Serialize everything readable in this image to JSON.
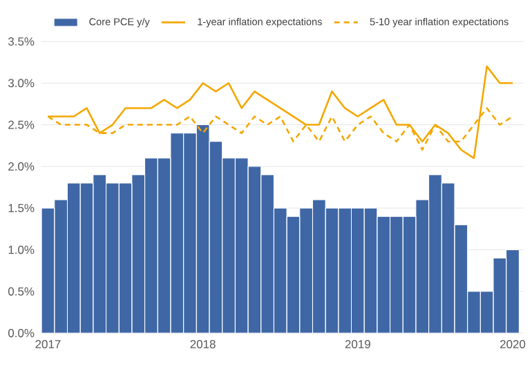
{
  "chart_data": {
    "type": "bar",
    "x": [
      "2017-01",
      "2017-02",
      "2017-03",
      "2017-04",
      "2017-05",
      "2017-06",
      "2017-07",
      "2017-08",
      "2017-09",
      "2017-10",
      "2017-11",
      "2017-12",
      "2018-01",
      "2018-02",
      "2018-03",
      "2018-04",
      "2018-05",
      "2018-06",
      "2018-07",
      "2018-08",
      "2018-09",
      "2018-10",
      "2018-11",
      "2018-12",
      "2019-01",
      "2019-02",
      "2019-03",
      "2019-04",
      "2019-05",
      "2019-06",
      "2019-07",
      "2019-08",
      "2019-09",
      "2019-10",
      "2019-11",
      "2019-12",
      "2020-01"
    ],
    "series": [
      {
        "name": "Core PCE y/y",
        "color": "#3f67a6",
        "values": [
          1.5,
          1.6,
          1.8,
          1.8,
          1.9,
          1.8,
          1.8,
          1.9,
          2.1,
          2.1,
          2.4,
          2.4,
          2.5,
          2.3,
          2.1,
          2.1,
          2.0,
          1.9,
          1.5,
          1.4,
          1.5,
          1.6,
          1.5,
          1.5,
          1.5,
          1.5,
          1.4,
          1.4,
          1.4,
          1.6,
          1.9,
          1.8,
          1.3,
          0.5,
          0.5,
          0.9,
          1.0
        ]
      },
      {
        "name": "1-year inflation expectations",
        "type": "line",
        "line_style": "solid",
        "color": "#f4a700",
        "values": [
          2.6,
          2.6,
          2.6,
          2.7,
          2.4,
          2.5,
          2.7,
          2.7,
          2.7,
          2.8,
          2.7,
          2.8,
          3.0,
          2.9,
          3.0,
          2.7,
          2.9,
          2.8,
          2.7,
          2.6,
          2.5,
          2.5,
          2.9,
          2.7,
          2.6,
          2.7,
          2.8,
          2.5,
          2.5,
          2.3,
          2.5,
          2.4,
          2.2,
          2.1,
          3.2,
          3.0,
          3.0
        ]
      },
      {
        "name": "5-10 year inflation expectations",
        "type": "line",
        "line_style": "dashed",
        "color": "#f4a700",
        "values": [
          2.6,
          2.5,
          2.5,
          2.5,
          2.4,
          2.4,
          2.5,
          2.5,
          2.5,
          2.5,
          2.5,
          2.6,
          2.4,
          2.6,
          2.5,
          2.4,
          2.6,
          2.5,
          2.6,
          2.3,
          2.5,
          2.3,
          2.6,
          2.3,
          2.5,
          2.6,
          2.4,
          2.3,
          2.5,
          2.2,
          2.5,
          2.3,
          2.3,
          2.5,
          2.7,
          2.5,
          2.6
        ]
      }
    ],
    "xlim": [
      "2016-12-16",
      "2020-01-27"
    ],
    "xticks": [
      "2017",
      "2018",
      "2019",
      "2020"
    ],
    "ylim": [
      0,
      3.5
    ],
    "yticks": [
      {
        "value": 0,
        "label": "0.0%"
      },
      {
        "value": 0.5,
        "label": "0.5%"
      },
      {
        "value": 1,
        "label": "1.0%"
      },
      {
        "value": 1.5,
        "label": "1.5%"
      },
      {
        "value": 2,
        "label": "2.0%"
      },
      {
        "value": 2.5,
        "label": "2.5%"
      },
      {
        "value": 3,
        "label": "3.0%"
      },
      {
        "value": 3.5,
        "label": "3.5%"
      }
    ],
    "grid": "y",
    "legend": "top",
    "marker": "none"
  }
}
